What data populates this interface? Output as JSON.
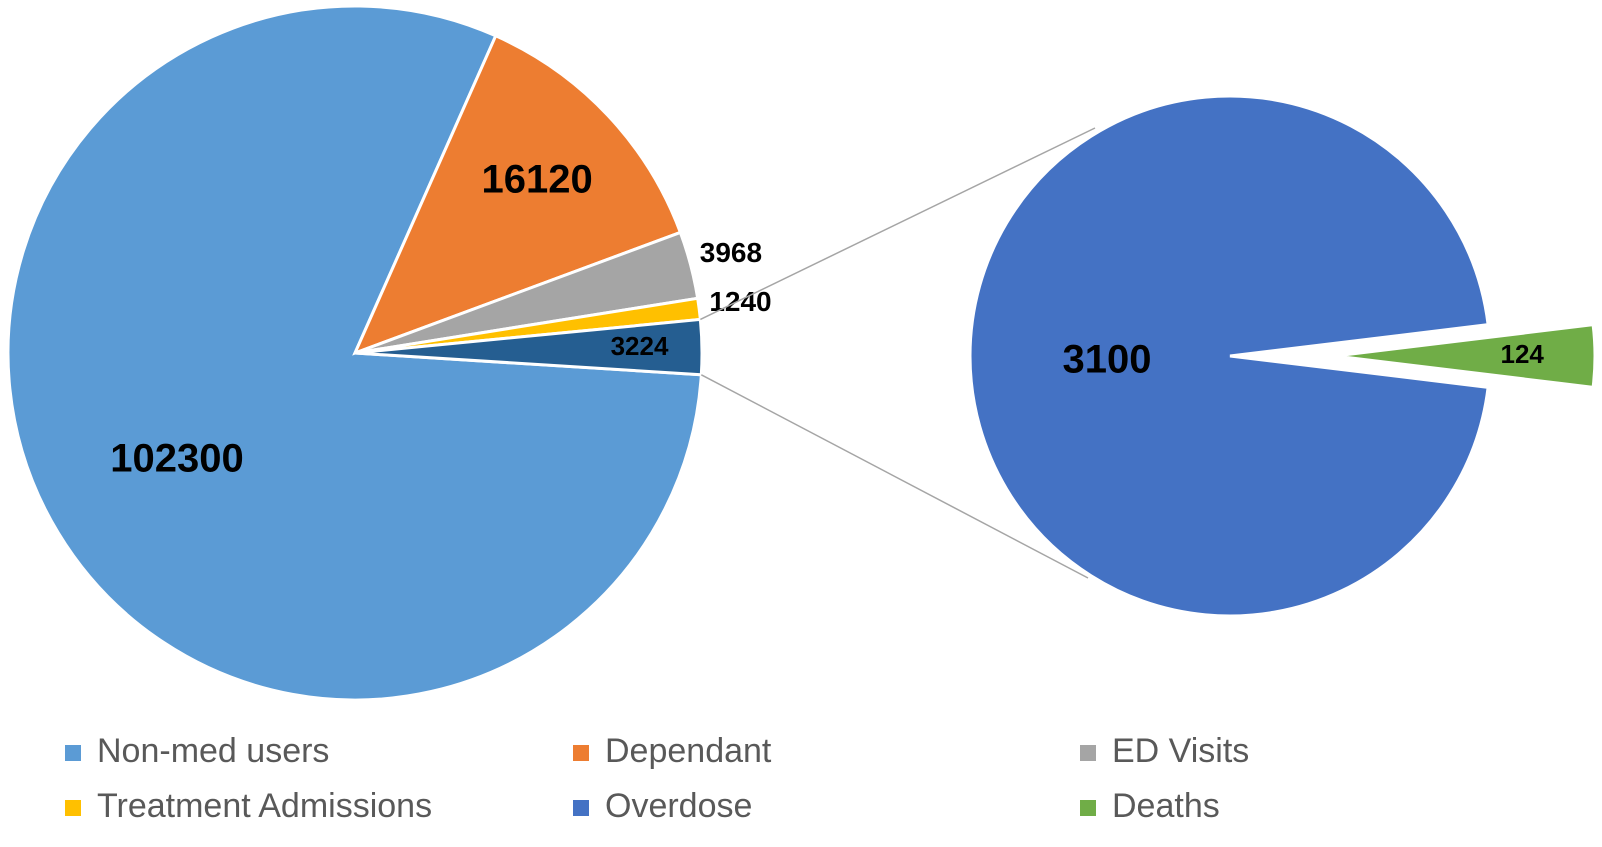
{
  "chart_data": {
    "type": "pie_of_pie",
    "categories": [
      "Non-med users",
      "Dependant",
      "ED Visits",
      "Treatment Admissions",
      "Overdose",
      "Deaths"
    ],
    "values": [
      102300,
      16120,
      3968,
      1240,
      3100,
      124
    ],
    "colors": [
      "#5b9bd5",
      "#ed7d31",
      "#a5a5a5",
      "#ffc000",
      "#4472c4",
      "#70ad47"
    ],
    "combined": {
      "value": 3224,
      "color": "#255e91"
    },
    "secondary_count": 2,
    "legend": "bottom"
  }
}
